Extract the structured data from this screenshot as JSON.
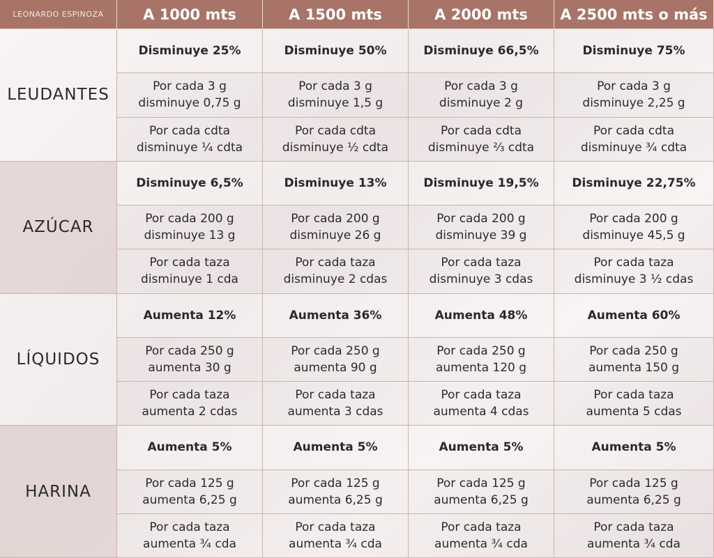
{
  "header": {
    "brand": "LEONARDO ESPINOZA",
    "columns": [
      "A 1000 mts",
      "A 1500 mts",
      "A 2000 mts",
      "A 2500 mts o más"
    ]
  },
  "sections": [
    {
      "label": "LEUDANTES",
      "rows": [
        [
          "Disminuye 25%",
          "Disminuye 50%",
          "Disminuye 66,5%",
          "Disminuye 75%"
        ],
        [
          "Por cada 3 g\ndisminuye 0,75 g",
          "Por cada 3 g\ndisminuye 1,5 g",
          "Por cada 3 g\ndisminuye 2 g",
          "Por cada 3 g\ndisminuye 2,25 g"
        ],
        [
          "Por cada cdta\ndisminuye ¼ cdta",
          "Por cada cdta\ndisminuye ½ cdta",
          "Por cada cdta\ndisminuye ⅔ cdta",
          "Por cada cdta\ndisminuye ¾ cdta"
        ]
      ]
    },
    {
      "label": "AZÚCAR",
      "rows": [
        [
          "Disminuye 6,5%",
          "Disminuye 13%",
          "Disminuye 19,5%",
          "Disminuye 22,75%"
        ],
        [
          "Por cada 200 g\ndisminuye 13 g",
          "Por cada 200 g\ndisminuye 26 g",
          "Por cada 200 g\ndisminuye 39 g",
          "Por cada 200 g\ndisminuye 45,5 g"
        ],
        [
          "Por cada taza\ndisminuye 1 cda",
          "Por cada taza\ndisminuye 2 cdas",
          "Por cada taza\ndisminuye 3 cdas",
          "Por cada taza\ndisminuye 3 ½ cdas"
        ]
      ]
    },
    {
      "label": "LÍQUIDOS",
      "rows": [
        [
          "Aumenta 12%",
          "Aumenta 36%",
          "Aumenta 48%",
          "Aumenta 60%"
        ],
        [
          "Por cada 250 g\naumenta 30 g",
          "Por cada 250 g\naumenta 90 g",
          "Por cada 250 g\naumenta 120 g",
          "Por cada 250 g\naumenta 150 g"
        ],
        [
          "Por cada taza\naumenta 2 cdas",
          "Por cada taza\naumenta 3 cdas",
          "Por cada taza\naumenta 4 cdas",
          "Por cada taza\naumenta 5 cdas"
        ]
      ]
    },
    {
      "label": "HARINA",
      "rows": [
        [
          "Aumenta 5%",
          "Aumenta 5%",
          "Aumenta 5%",
          "Aumenta 5%"
        ],
        [
          "Por cada 125 g\naumenta 6,25 g",
          "Por cada 125 g\naumenta 6,25 g",
          "Por cada 125 g\naumenta 6,25 g",
          "Por cada 125 g\naumenta 6,25 g"
        ],
        [
          "Por cada taza\naumenta ¾ cda",
          "Por cada taza\naumenta ¾ cda",
          "Por cada taza\naumenta ¾ cda",
          "Por cada taza\naumenta ¾ cda"
        ]
      ]
    }
  ]
}
